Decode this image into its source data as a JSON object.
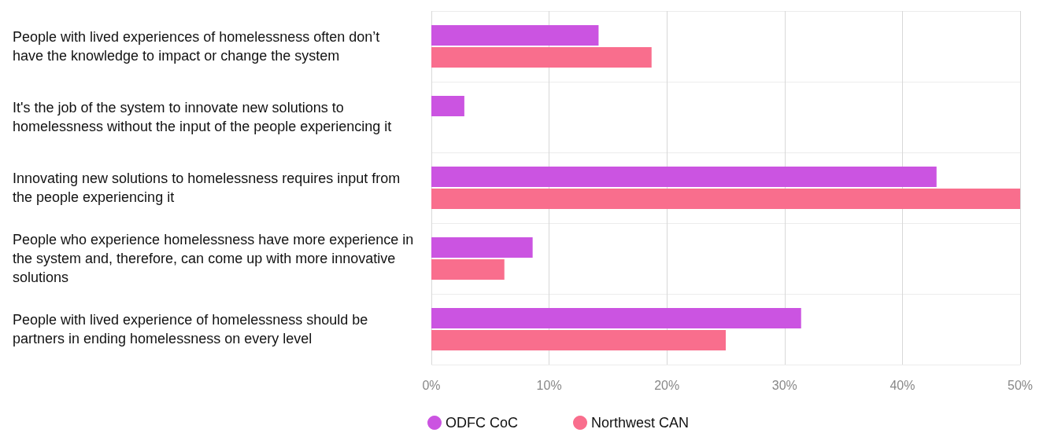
{
  "chart_data": {
    "type": "bar",
    "orientation": "horizontal",
    "categories": [
      "People with lived experiences of homelessness often don’t have the knowledge to impact or change the system",
      "It's the job of the system to innovate new solutions to homelessness without the input of the people experiencing it",
      "Innovating new solutions to homelessness requires input from the people experiencing it",
      "People who experience homelessness have more experience in the system and, therefore, can come up with more innovative solutions",
      "People with lived experience of homelessness should be partners in ending homelessness on every level"
    ],
    "series": [
      {
        "name": "ODFC CoC",
        "color": "#cb54e1",
        "values": [
          14.2,
          2.8,
          42.9,
          8.6,
          31.4
        ]
      },
      {
        "name": "Northwest CAN",
        "color": "#f96e8d",
        "values": [
          18.7,
          0,
          50,
          6.2,
          25.0
        ]
      }
    ],
    "xlim": [
      0,
      50
    ],
    "xticks": [
      {
        "value": 0,
        "label": "0%"
      },
      {
        "value": 10,
        "label": "10%"
      },
      {
        "value": 20,
        "label": "20%"
      },
      {
        "value": 30,
        "label": "30%"
      },
      {
        "value": 40,
        "label": "40%"
      },
      {
        "value": 50,
        "label": "50%"
      }
    ],
    "grid": true,
    "legend": "bottom"
  }
}
